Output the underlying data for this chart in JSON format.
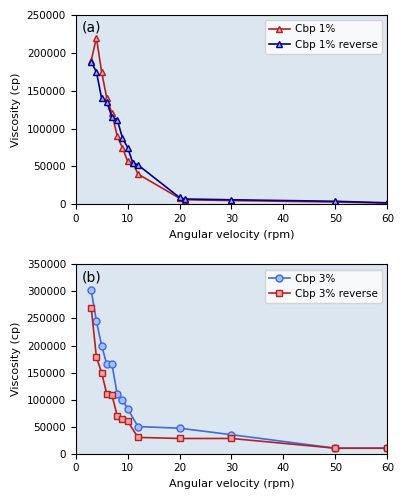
{
  "panel_a": {
    "cbp1_x": [
      3,
      4,
      5,
      6,
      7,
      8,
      9,
      10,
      11,
      12,
      20,
      21,
      30,
      50,
      60
    ],
    "cbp1_y": [
      190000,
      220000,
      175000,
      140000,
      120000,
      90000,
      75000,
      57000,
      55000,
      40000,
      8000,
      6000,
      5000,
      3000,
      1500
    ],
    "cbp1r_x": [
      3,
      4,
      5,
      6,
      7,
      8,
      9,
      10,
      11,
      12,
      20,
      21,
      30,
      50,
      60
    ],
    "cbp1r_y": [
      188000,
      175000,
      140000,
      135000,
      115000,
      112000,
      88000,
      75000,
      55000,
      52000,
      9000,
      7000,
      6000,
      4000,
      2000
    ],
    "ylabel": "Viscosity (cp)",
    "xlabel": "Angular velocity (rpm)",
    "ylim": [
      0,
      250000
    ],
    "xlim": [
      0,
      60
    ],
    "yticks": [
      0,
      50000,
      100000,
      150000,
      200000,
      250000
    ],
    "xticks": [
      0,
      10,
      20,
      30,
      40,
      50,
      60
    ],
    "label_cbp1": "Cbp 1%",
    "label_cbp1r": "Cbp 1% reverse",
    "color_cbp1": "#b22222",
    "color_cbp1r": "#00008b",
    "panel_label": "(a)"
  },
  "panel_b": {
    "cbp3_x": [
      3,
      4,
      5,
      6,
      7,
      8,
      9,
      10,
      12,
      20,
      30,
      50,
      60
    ],
    "cbp3_y": [
      302000,
      245000,
      200000,
      165000,
      165000,
      110000,
      100000,
      83000,
      50000,
      47000,
      35000,
      10000,
      10000
    ],
    "cbp3r_x": [
      3,
      4,
      5,
      6,
      7,
      8,
      9,
      10,
      12,
      20,
      30,
      50,
      60
    ],
    "cbp3r_y": [
      270000,
      178000,
      150000,
      110000,
      108000,
      70000,
      64000,
      60000,
      30000,
      28000,
      28000,
      10000,
      10000
    ],
    "ylabel": "Viscosity (cp)",
    "xlabel": "Angular velocity (rpm)",
    "ylim": [
      0,
      350000
    ],
    "xlim": [
      0,
      60
    ],
    "yticks": [
      0,
      50000,
      100000,
      150000,
      200000,
      250000,
      300000,
      350000
    ],
    "xticks": [
      0,
      10,
      20,
      30,
      40,
      50,
      60
    ],
    "label_cbp3": "Cbp 3%",
    "label_cbp3r": "Cbp 3% reverse",
    "color_cbp3": "#4169e1",
    "color_cbp3r": "#b22222",
    "panel_label": "(b)"
  },
  "bg_color": "#dce6f0",
  "fig_bg": "#ffffff"
}
